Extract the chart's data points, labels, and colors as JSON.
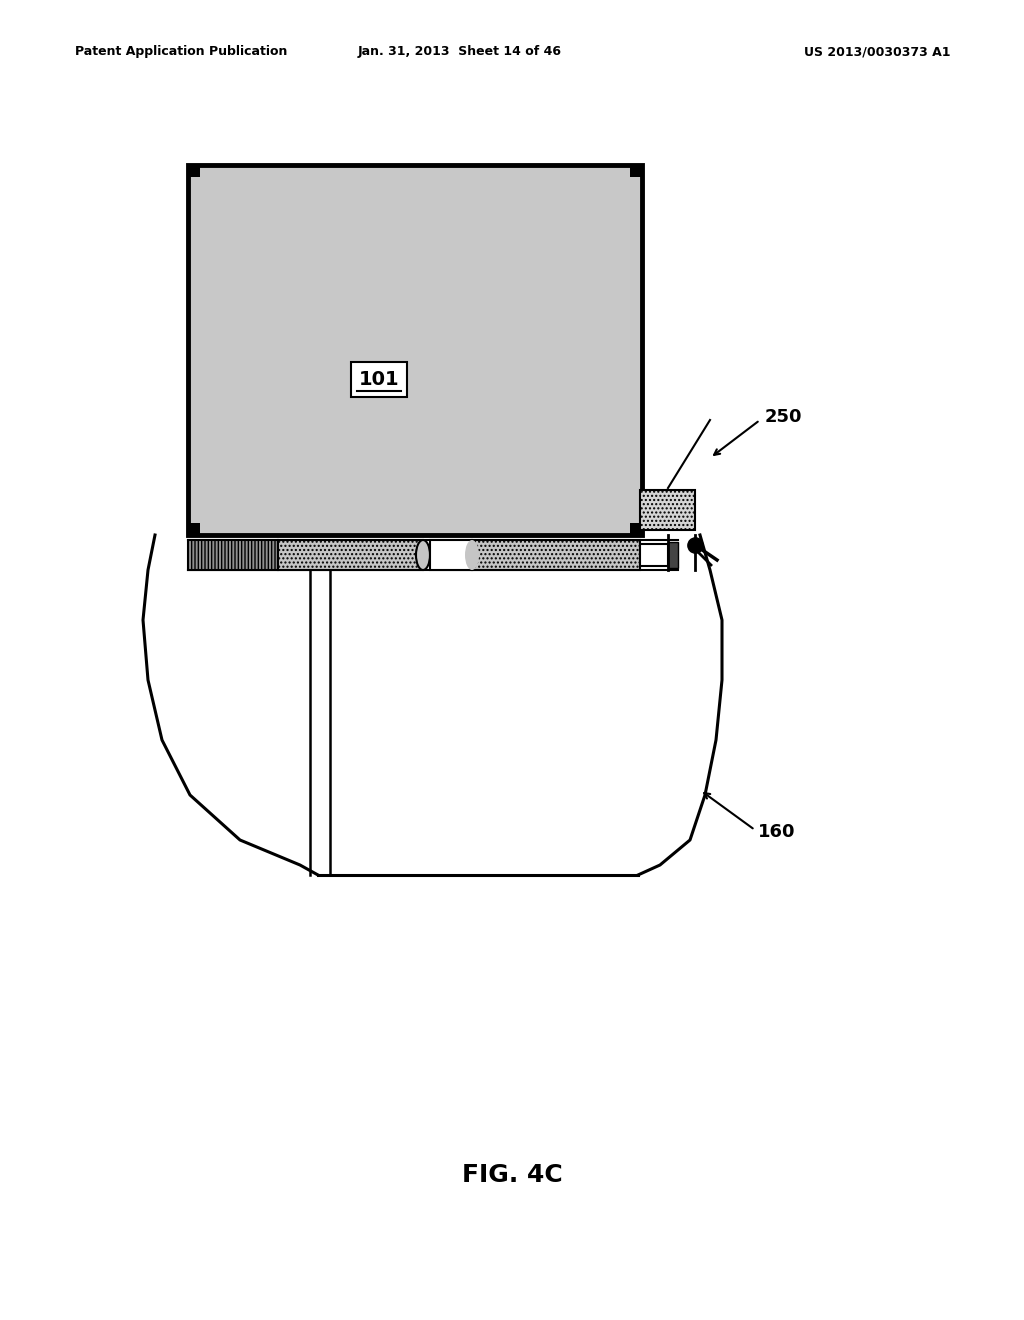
{
  "bg_color": "#ffffff",
  "header_left": "Patent Application Publication",
  "header_mid": "Jan. 31, 2013  Sheet 14 of 46",
  "header_right": "US 2013/0030373 A1",
  "fig_label": "FIG. 4C",
  "label_101": "101",
  "label_250": "250",
  "label_160": "160"
}
